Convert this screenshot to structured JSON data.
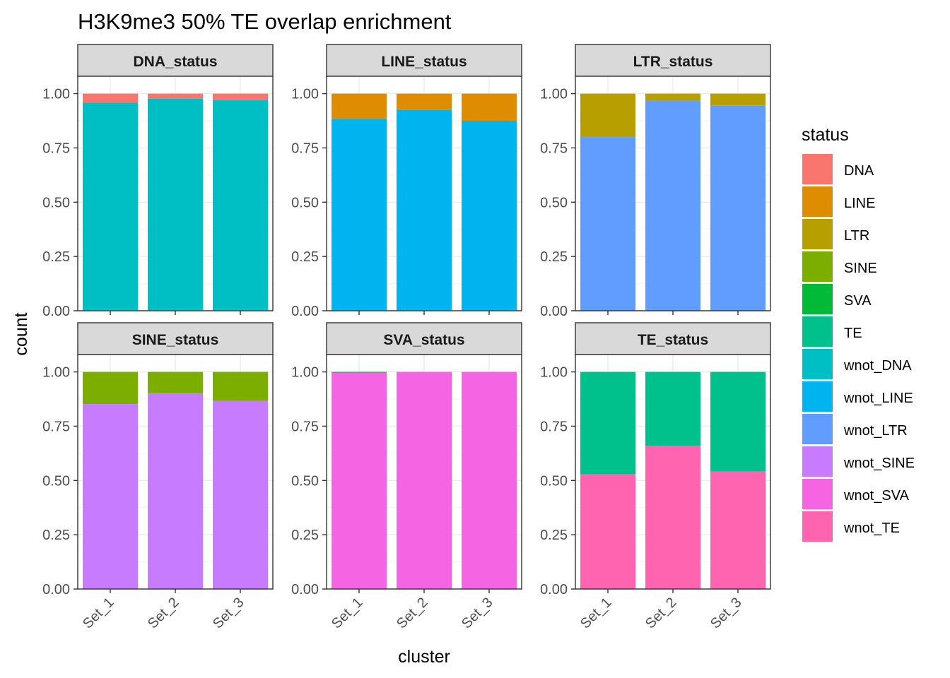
{
  "chart_data": {
    "type": "bar",
    "stacked": true,
    "title": "H3K9me3 50% TE overlap enrichment",
    "xlabel": "cluster",
    "ylabel": "count",
    "ylim": [
      0,
      1.08
    ],
    "yticks": [
      "0.00",
      "0.25",
      "0.50",
      "0.75",
      "1.00"
    ],
    "categories": [
      "Set_1",
      "Set_2",
      "Set_3"
    ],
    "grid": true,
    "legend_position": "right",
    "legend": {
      "title": "status",
      "items": [
        {
          "label": "DNA",
          "color": "#F8766D"
        },
        {
          "label": "LINE",
          "color": "#DE8C00"
        },
        {
          "label": "LTR",
          "color": "#B79F00"
        },
        {
          "label": "SINE",
          "color": "#7CAE00"
        },
        {
          "label": "SVA",
          "color": "#00BA38"
        },
        {
          "label": "TE",
          "color": "#00C08B"
        },
        {
          "label": "wnot_DNA",
          "color": "#00BFC4"
        },
        {
          "label": "wnot_LINE",
          "color": "#00B4F0"
        },
        {
          "label": "wnot_LTR",
          "color": "#619CFF"
        },
        {
          "label": "wnot_SINE",
          "color": "#C77CFF"
        },
        {
          "label": "wnot_SVA",
          "color": "#F564E3"
        },
        {
          "label": "wnot_TE",
          "color": "#FF64B0"
        }
      ]
    },
    "panels": [
      {
        "strip": "DNA_status",
        "series": [
          {
            "name": "wnot_DNA",
            "values": [
              0.959,
              0.977,
              0.97
            ]
          },
          {
            "name": "DNA",
            "values": [
              0.041,
              0.023,
              0.03
            ]
          }
        ]
      },
      {
        "strip": "LINE_status",
        "series": [
          {
            "name": "wnot_LINE",
            "values": [
              0.884,
              0.925,
              0.875
            ]
          },
          {
            "name": "LINE",
            "values": [
              0.116,
              0.075,
              0.125
            ]
          }
        ]
      },
      {
        "strip": "LTR_status",
        "series": [
          {
            "name": "wnot_LTR",
            "values": [
              0.8,
              0.968,
              0.946
            ]
          },
          {
            "name": "LTR",
            "values": [
              0.2,
              0.032,
              0.054
            ]
          }
        ]
      },
      {
        "strip": "SINE_status",
        "series": [
          {
            "name": "wnot_SINE",
            "values": [
              0.852,
              0.902,
              0.866
            ]
          },
          {
            "name": "SINE",
            "values": [
              0.148,
              0.098,
              0.134
            ]
          }
        ]
      },
      {
        "strip": "SVA_status",
        "series": [
          {
            "name": "wnot_SVA",
            "values": [
              0.996,
              1.0,
              1.0
            ]
          },
          {
            "name": "SVA",
            "values": [
              0.004,
              0.0,
              0.0
            ]
          }
        ]
      },
      {
        "strip": "TE_status",
        "series": [
          {
            "name": "wnot_TE",
            "values": [
              0.528,
              0.66,
              0.541
            ]
          },
          {
            "name": "TE",
            "values": [
              0.472,
              0.34,
              0.459
            ]
          }
        ]
      }
    ]
  }
}
